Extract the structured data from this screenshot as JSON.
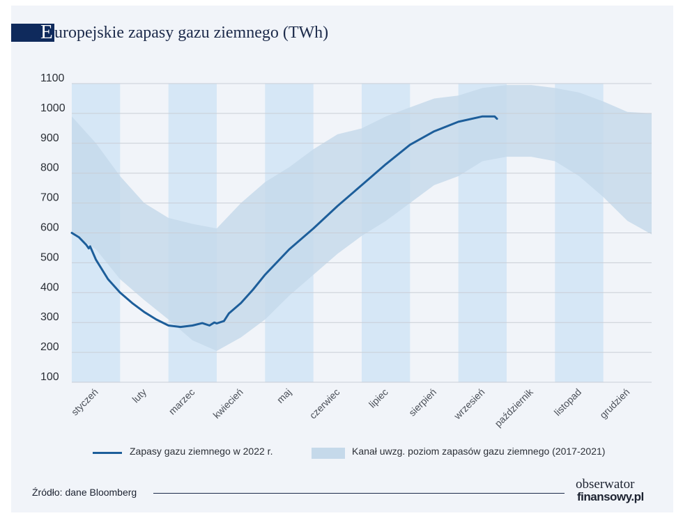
{
  "title_initial": "E",
  "title_rest": "uropejskie zapasy gazu ziemnego (TWh)",
  "colors": {
    "line": "#1d5e9a",
    "band": "#c5d9ea",
    "month_stripe": "#d6e7f6",
    "grid": "#c9ced6",
    "title_block": "#0f2a5c"
  },
  "legend": {
    "line_label": "Zapasy gazu ziemnego w 2022 r.",
    "band_label": "Kanał uwzg. poziom zapasów gazu ziemnego (2017-2021)"
  },
  "source": "Źródło: dane Bloomberg",
  "logo": {
    "top": "obserwator",
    "bottom": "finansowy.pl"
  },
  "chart_data": {
    "type": "line",
    "title": "Europejskie zapasy gazu ziemnego (TWh)",
    "ylim": [
      100,
      1100
    ],
    "yticks": [
      1100,
      1000,
      900,
      800,
      700,
      600,
      500,
      400,
      300,
      200,
      100
    ],
    "xlim": [
      0,
      12
    ],
    "categories": [
      "styczeń",
      "luty",
      "marzec",
      "kwiecień",
      "maj",
      "czerwiec",
      "lipiec",
      "sierpień",
      "wrzesień",
      "październik",
      "listopad",
      "grudzień"
    ],
    "shaded_months": [
      "styczeń",
      "marzec",
      "maj",
      "lipiec",
      "wrzesień",
      "listopad"
    ],
    "grid": true,
    "legend_position": "bottom",
    "series": [
      {
        "name": "Zapasy gazu ziemnego w 2022 r.",
        "type": "line",
        "x": [
          0,
          0.15,
          0.3,
          0.35,
          0.38,
          0.5,
          0.75,
          1.0,
          1.25,
          1.5,
          1.75,
          2.0,
          2.25,
          2.5,
          2.7,
          2.85,
          2.95,
          3.0,
          3.15,
          3.25,
          3.5,
          3.75,
          4.0,
          4.5,
          5.0,
          5.5,
          6.0,
          6.5,
          7.0,
          7.5,
          8.0,
          8.5,
          8.75,
          8.8
        ],
        "values": [
          600,
          585,
          560,
          548,
          555,
          510,
          445,
          400,
          365,
          335,
          310,
          290,
          285,
          290,
          298,
          290,
          300,
          297,
          305,
          330,
          365,
          410,
          460,
          545,
          615,
          690,
          760,
          830,
          895,
          940,
          972,
          990,
          990,
          982
        ]
      },
      {
        "name": "Kanał uwzg. poziom zapasów gazu ziemnego (2017-2021)",
        "type": "area_band",
        "x": [
          0,
          0.5,
          1.0,
          1.5,
          2.0,
          2.5,
          3.0,
          3.5,
          4.0,
          4.5,
          5.0,
          5.5,
          6.0,
          6.5,
          7.0,
          7.5,
          8.0,
          8.5,
          9.0,
          9.5,
          10.0,
          10.5,
          11.0,
          11.5,
          12.0
        ],
        "upper": [
          990,
          900,
          790,
          700,
          650,
          630,
          615,
          700,
          770,
          820,
          880,
          930,
          950,
          990,
          1020,
          1050,
          1060,
          1085,
          1095,
          1095,
          1085,
          1070,
          1040,
          1005,
          1000
        ],
        "lower": [
          600,
          545,
          445,
          375,
          310,
          240,
          205,
          250,
          310,
          390,
          460,
          530,
          590,
          640,
          700,
          760,
          790,
          840,
          855,
          855,
          840,
          790,
          720,
          640,
          595
        ]
      }
    ]
  }
}
